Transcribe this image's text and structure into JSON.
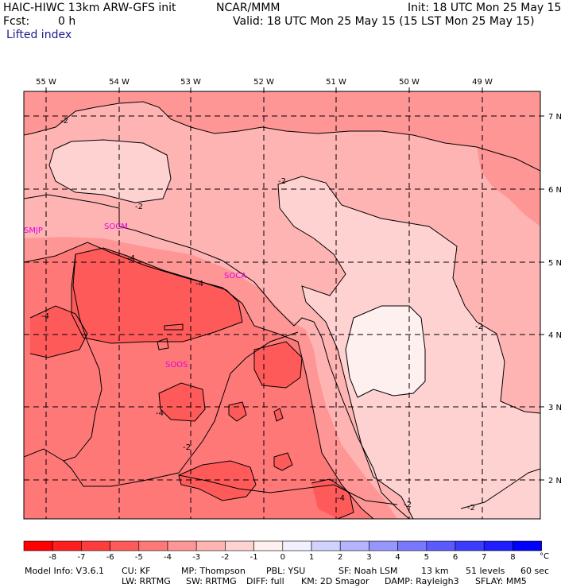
{
  "header": {
    "model_title": "HAIC-HIWC 13km ARW-GFS init",
    "center": "NCAR/MMM",
    "init": "Init: 18 UTC Mon 25 May 15",
    "fcst_label": "Fcst:",
    "fcst_value": "0 h",
    "valid": "Valid: 18 UTC Mon 25 May 15 (15 LST Mon 25 May 15)",
    "field": "Lifted index"
  },
  "map": {
    "lon_labels": [
      "55 W",
      "54 W",
      "53 W",
      "52 W",
      "51 W",
      "50 W",
      "49 W"
    ],
    "lat_labels": [
      "7 N",
      "6 N",
      "5 N",
      "4 N",
      "3 N",
      "2 N"
    ],
    "stations": [
      "SMJP",
      "SOCM",
      "SOCA",
      "SOOS"
    ],
    "contour_labels": [
      "-2",
      "-2",
      "-2",
      "-2",
      "-2",
      "-4",
      "-4",
      "-4",
      "-4",
      "-4",
      "-2",
      "-2"
    ]
  },
  "legend": {
    "labels": [
      "-8",
      "-7",
      "-6",
      "-5",
      "-4",
      "-3",
      "-2",
      "-1",
      "0",
      "1",
      "2",
      "3",
      "4",
      "5",
      "6",
      "7",
      "8"
    ],
    "unit": "°C",
    "colors": [
      "#ff0000",
      "#ff1e1e",
      "#ff3c3c",
      "#ff5a5a",
      "#ff7878",
      "#ff9696",
      "#ffb4b4",
      "#ffd2d2",
      "#fff0f0",
      "#f0f0ff",
      "#d2d2ff",
      "#b4b4ff",
      "#9696ff",
      "#7878ff",
      "#5a5aff",
      "#3c3cff",
      "#1e1eff",
      "#0000ff"
    ]
  },
  "footer": {
    "line1": [
      "Model Info: V3.6.1",
      "CU: KF",
      "MP: Thompson",
      "PBL: YSU",
      "SF: Noah LSM",
      "13 km",
      "51 levels",
      "60 sec"
    ],
    "line2": [
      "LW: RRTMG",
      "SW: RRTMG",
      "DIFF: full",
      "KM: 2D Smagor",
      "DAMP: Rayleigh3",
      "SFLAY: MM5"
    ]
  }
}
